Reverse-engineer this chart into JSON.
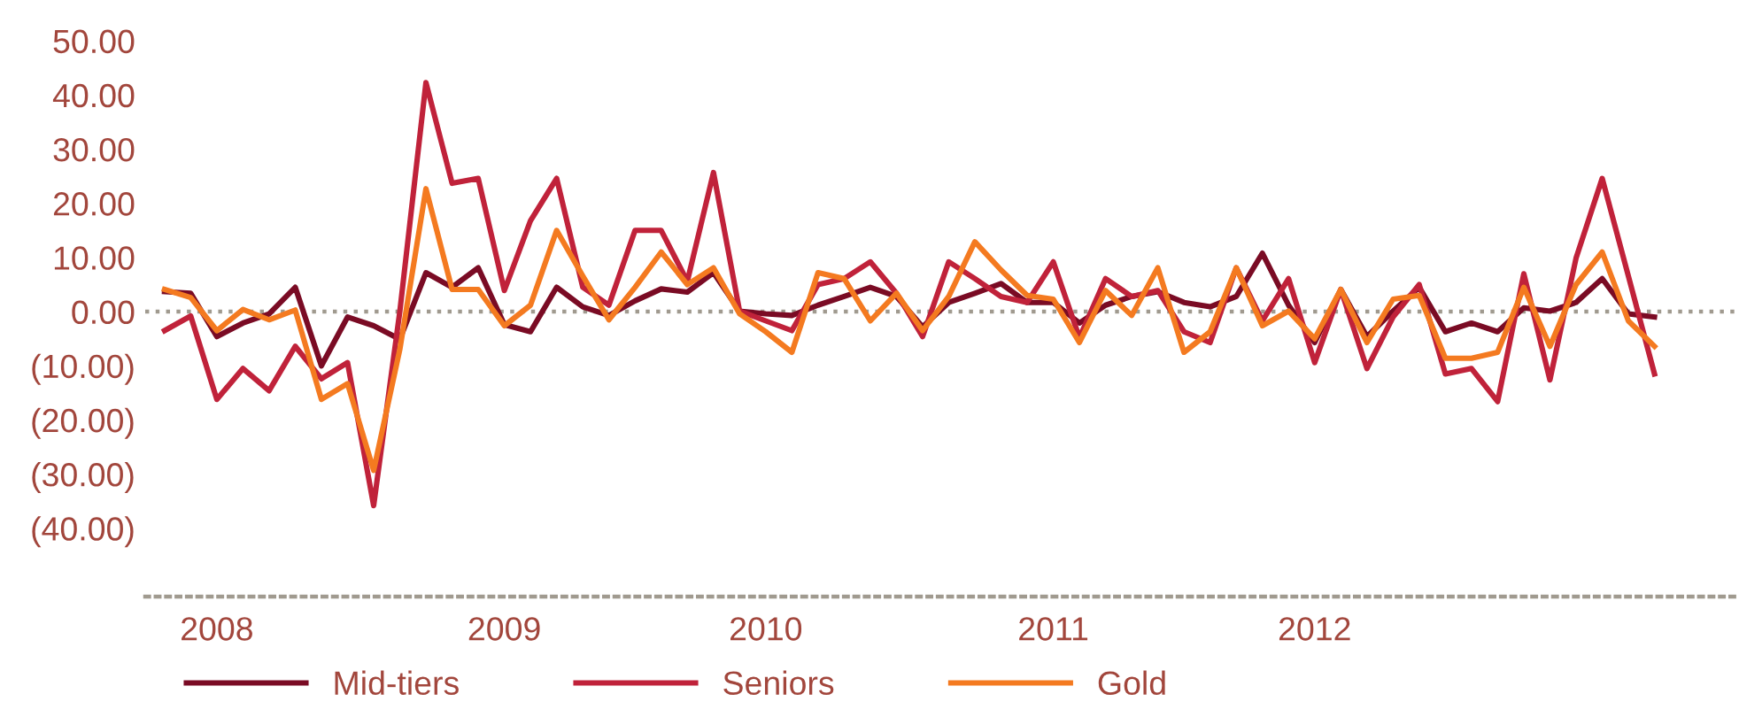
{
  "chart_data": {
    "type": "line",
    "categories": [
      null,
      null,
      "2008",
      null,
      null,
      null,
      null,
      null,
      null,
      null,
      null,
      null,
      null,
      "2009",
      null,
      null,
      null,
      null,
      null,
      null,
      null,
      null,
      null,
      "2010",
      null,
      null,
      null,
      null,
      null,
      null,
      null,
      null,
      null,
      null,
      "2011",
      null,
      null,
      null,
      null,
      null,
      null,
      null,
      null,
      null,
      "2012",
      null,
      null,
      null,
      null,
      null,
      null,
      null,
      null,
      null,
      null,
      null,
      null,
      null
    ],
    "series": [
      {
        "name": "Mid-tiers",
        "color": "#7a0b24",
        "values": [
          3.7,
          3.4,
          -4.6,
          -2.1,
          -0.4,
          4.5,
          -10,
          -1,
          -2.6,
          -5.1,
          7.2,
          4.5,
          8.1,
          -2.4,
          -3.7,
          4.5,
          0.9,
          -0.7,
          2,
          4.2,
          3.6,
          7.2,
          0.1,
          -0.4,
          -0.7,
          1.2,
          2.8,
          4.5,
          2.8,
          -2.8,
          1.7,
          3.4,
          5.2,
          1.7,
          1.7,
          -2.1,
          1.2,
          2.8,
          3.7,
          1.7,
          0.9,
          2.8,
          10.8,
          1.2,
          -5.7,
          4.1,
          -4.6,
          0.1,
          4.5,
          -3.7,
          -2.1,
          -3.7,
          0.7,
          0.1,
          1.7,
          6.1,
          -0.4,
          -1
        ]
      },
      {
        "name": "Seniors",
        "color": "#c0223a",
        "values": [
          -3.5,
          -0.8,
          -16.2,
          -10.5,
          -14.6,
          -6.4,
          -12.4,
          -9.4,
          -35.8,
          0,
          42.3,
          23.7,
          24.6,
          3.9,
          16.8,
          24.6,
          4.5,
          1.2,
          15,
          15,
          5.6,
          25.7,
          0.1,
          -1.7,
          -3.5,
          5,
          6.1,
          9.2,
          3.4,
          -4.6,
          9.2,
          6.1,
          2.8,
          1.7,
          9.2,
          -4.8,
          6.1,
          2.8,
          3.9,
          -3.7,
          -5.7,
          8.1,
          -1.7,
          6.1,
          -9.4,
          4.1,
          -10.5,
          -1,
          5,
          -11.5,
          -10.5,
          -16.6,
          7,
          -12.6,
          9.9,
          24.6,
          6.6,
          -11.5
        ]
      },
      {
        "name": "Gold",
        "color": "#f47a20",
        "values": [
          4.1,
          2.6,
          -3.5,
          0.4,
          -1.5,
          0.3,
          -16.2,
          -13.3,
          -29.3,
          -7,
          22.7,
          4.1,
          4.1,
          -2.6,
          1.2,
          15,
          6.6,
          -1.5,
          4.5,
          11,
          5,
          8.1,
          -0.4,
          -3.7,
          -7.5,
          7.2,
          6.1,
          -1.7,
          3.4,
          -3.5,
          2.8,
          12.9,
          7.7,
          3,
          2.3,
          -5.7,
          3.9,
          -0.7,
          8.1,
          -7.5,
          -3.7,
          8.1,
          -2.6,
          0.1,
          -5,
          4.1,
          -5.7,
          2.3,
          3,
          -8.6,
          -8.6,
          -7.5,
          4.5,
          -6.4,
          5,
          11,
          -1.7,
          -6.4
        ]
      }
    ],
    "ylim": [
      -52.6,
      50
    ],
    "yticks": [
      {
        "value": 50,
        "label": "50.00"
      },
      {
        "value": 40,
        "label": "40.00"
      },
      {
        "value": 30,
        "label": "30.00"
      },
      {
        "value": 20,
        "label": "20.00"
      },
      {
        "value": 10,
        "label": "10.00"
      },
      {
        "value": 0,
        "label": "0.00"
      },
      {
        "value": -10,
        "label": "(10.00)"
      },
      {
        "value": -20,
        "label": "(20.00)"
      },
      {
        "value": -30,
        "label": "(30.00)"
      },
      {
        "value": -40,
        "label": "(40.00)"
      }
    ],
    "ref_lines": [
      {
        "axis": "y",
        "value": 0,
        "label": null,
        "color": "#a09a8f",
        "line_style": "dotted"
      }
    ],
    "grid": false,
    "legend": "bottom",
    "marker": "none",
    "line_style": "solid"
  }
}
